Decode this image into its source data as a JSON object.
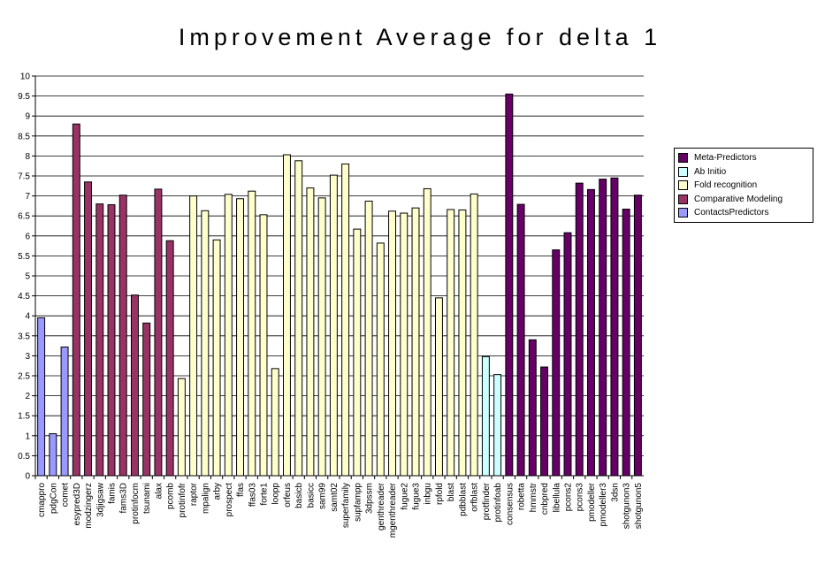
{
  "chart_data": {
    "type": "bar",
    "title": "Improvement Average for delta 1",
    "xlabel": "",
    "ylabel": "",
    "ylim": [
      0,
      10
    ],
    "yticks": [
      "0",
      "0.5",
      "1",
      "1.5",
      "2",
      "2.5",
      "3",
      "3.5",
      "4",
      "4.5",
      "5",
      "5.5",
      "6",
      "6.5",
      "7",
      "7.5",
      "8",
      "8.5",
      "9",
      "9.5",
      "10"
    ],
    "grid": true,
    "legend_position": "right",
    "groups": [
      {
        "name": "Meta-Predictors",
        "color": "#660066"
      },
      {
        "name": "Ab Initio",
        "color": "#ccffff"
      },
      {
        "name": "Fold recognition",
        "color": "#ffffcc"
      },
      {
        "name": "Comparative Modeling",
        "color": "#993366"
      },
      {
        "name": "ContactsPredictors",
        "color": "#9999ff"
      }
    ],
    "categories": [
      "cmappro",
      "pdgCon",
      "comet",
      "esypred3D",
      "modzingerz",
      "3djigsaw",
      "famis",
      "fams3D",
      "protinfocm",
      "tsunami",
      "alax",
      "pcomb",
      "protinfofr",
      "raptor",
      "mpalign",
      "arby",
      "prospect",
      "ffas",
      "ffas03",
      "forte1",
      "loopp",
      "orfeus",
      "basicb",
      "basicc",
      "sam99",
      "samt02",
      "superfamily",
      "supfampp",
      "3dpssm",
      "genthreader",
      "mgenthreader",
      "fugue2",
      "fugue3",
      "inbgu",
      "rpfold",
      "blast",
      "pdbblast",
      "orfblast",
      "protfinder",
      "protinfoab",
      "consensus",
      "robetta",
      "hmmstr",
      "cnbpred",
      "libellula",
      "pcons2",
      "pcons3",
      "pmodeller",
      "pmodeller3",
      "3dsn",
      "shotgunon3",
      "shotgunon5"
    ],
    "series_group": [
      "ContactsPredictors",
      "ContactsPredictors",
      "ContactsPredictors",
      "Comparative Modeling",
      "Comparative Modeling",
      "Comparative Modeling",
      "Comparative Modeling",
      "Comparative Modeling",
      "Comparative Modeling",
      "Comparative Modeling",
      "Comparative Modeling",
      "Comparative Modeling",
      "Fold recognition",
      "Fold recognition",
      "Fold recognition",
      "Fold recognition",
      "Fold recognition",
      "Fold recognition",
      "Fold recognition",
      "Fold recognition",
      "Fold recognition",
      "Fold recognition",
      "Fold recognition",
      "Fold recognition",
      "Fold recognition",
      "Fold recognition",
      "Fold recognition",
      "Fold recognition",
      "Fold recognition",
      "Fold recognition",
      "Fold recognition",
      "Fold recognition",
      "Fold recognition",
      "Fold recognition",
      "Fold recognition",
      "Fold recognition",
      "Fold recognition",
      "Fold recognition",
      "Ab Initio",
      "Ab Initio",
      "Meta-Predictors",
      "Meta-Predictors",
      "Meta-Predictors",
      "Meta-Predictors",
      "Meta-Predictors",
      "Meta-Predictors",
      "Meta-Predictors",
      "Meta-Predictors",
      "Meta-Predictors",
      "Meta-Predictors",
      "Meta-Predictors",
      "Meta-Predictors"
    ],
    "values": [
      3.95,
      1.05,
      3.22,
      8.8,
      7.35,
      6.8,
      6.78,
      7.02,
      4.52,
      3.82,
      7.17,
      5.88,
      2.43,
      7.0,
      6.63,
      5.9,
      7.04,
      6.93,
      7.12,
      6.53,
      2.68,
      8.03,
      7.88,
      7.2,
      6.95,
      7.52,
      7.8,
      6.17,
      6.87,
      5.82,
      6.62,
      6.57,
      6.7,
      7.18,
      4.45,
      6.66,
      6.65,
      7.05,
      2.98,
      2.53,
      9.55,
      6.79,
      3.4,
      2.72,
      5.65,
      6.08,
      7.32,
      7.16,
      7.42,
      7.45,
      6.67,
      7.02
    ]
  }
}
